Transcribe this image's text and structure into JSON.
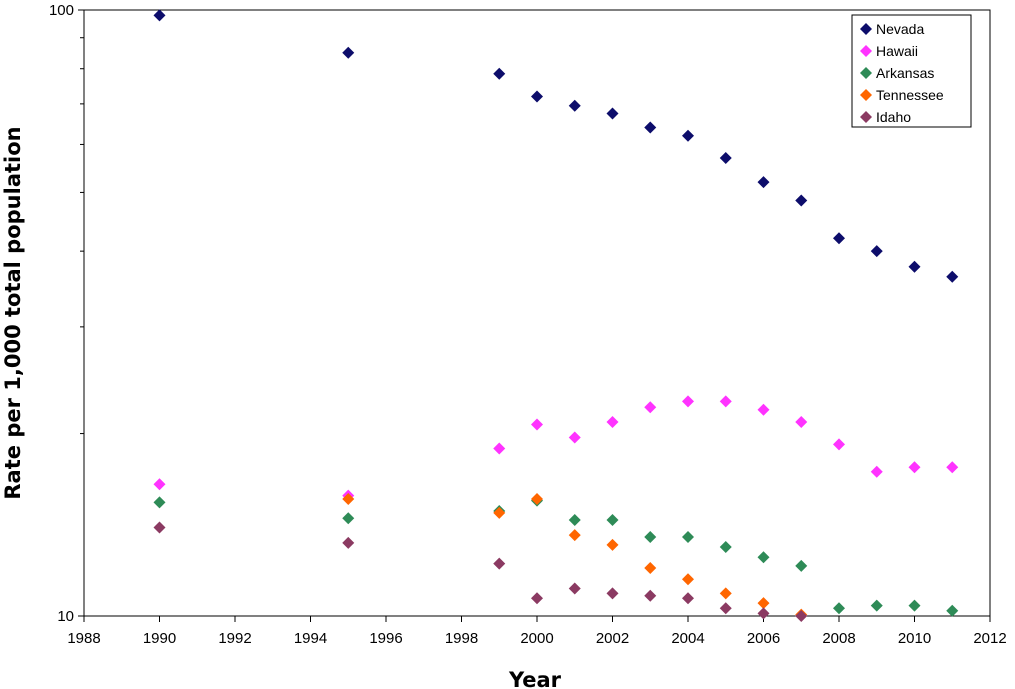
{
  "chart_data": {
    "type": "scatter",
    "title": "",
    "xlabel": "Year",
    "ylabel": "Rate per 1,000 total population",
    "xlim": [
      1988,
      2012
    ],
    "ylim": [
      10,
      100
    ],
    "yscale": "log",
    "x_ticks": [
      "1988",
      "1990",
      "1992",
      "1994",
      "1996",
      "1998",
      "2000",
      "2002",
      "2004",
      "2006",
      "2008",
      "2010",
      "2012"
    ],
    "y_ticks": [
      "10",
      "100"
    ],
    "grid": false,
    "legend_position": "top-right",
    "marker": "diamond",
    "series": [
      {
        "name": "Nevada",
        "color": "#0d0d6b",
        "points": [
          [
            1990,
            98.0
          ],
          [
            1995,
            85.0
          ],
          [
            1999,
            78.5
          ],
          [
            2000,
            72.0
          ],
          [
            2001,
            69.5
          ],
          [
            2002,
            67.5
          ],
          [
            2003,
            64.0
          ],
          [
            2004,
            62.0
          ],
          [
            2005,
            57.0
          ],
          [
            2006,
            52.0
          ],
          [
            2007,
            48.5
          ],
          [
            2008,
            42.0
          ],
          [
            2009,
            40.0
          ],
          [
            2010,
            37.7
          ],
          [
            2011,
            36.3
          ]
        ]
      },
      {
        "name": "Hawaii",
        "color": "#ff33ff",
        "points": [
          [
            1990,
            16.5
          ],
          [
            1995,
            15.8
          ],
          [
            1999,
            18.9
          ],
          [
            2000,
            20.7
          ],
          [
            2001,
            19.7
          ],
          [
            2002,
            20.9
          ],
          [
            2003,
            22.1
          ],
          [
            2004,
            22.6
          ],
          [
            2005,
            22.6
          ],
          [
            2006,
            21.9
          ],
          [
            2007,
            20.9
          ],
          [
            2008,
            19.2
          ],
          [
            2009,
            17.3
          ],
          [
            2010,
            17.6
          ],
          [
            2011,
            17.6
          ]
        ]
      },
      {
        "name": "Arkansas",
        "color": "#2e8b57",
        "points": [
          [
            1990,
            15.4
          ],
          [
            1995,
            14.5
          ],
          [
            1999,
            14.9
          ],
          [
            2000,
            15.5
          ],
          [
            2001,
            14.4
          ],
          [
            2002,
            14.4
          ],
          [
            2003,
            13.5
          ],
          [
            2004,
            13.5
          ],
          [
            2005,
            13.0
          ],
          [
            2006,
            12.5
          ],
          [
            2007,
            12.1
          ],
          [
            2008,
            10.3
          ],
          [
            2009,
            10.4
          ],
          [
            2010,
            10.4
          ],
          [
            2011,
            10.2
          ]
        ]
      },
      {
        "name": "Tennessee",
        "color": "#ff6600",
        "points": [
          [
            1995,
            15.6
          ],
          [
            1999,
            14.8
          ],
          [
            2000,
            15.6
          ],
          [
            2001,
            13.6
          ],
          [
            2002,
            13.1
          ],
          [
            2003,
            12.0
          ],
          [
            2004,
            11.5
          ],
          [
            2005,
            10.9
          ],
          [
            2006,
            10.5
          ],
          [
            2007,
            10.05
          ]
        ]
      },
      {
        "name": "Idaho",
        "color": "#8b3a62",
        "points": [
          [
            1990,
            14.0
          ],
          [
            1995,
            13.2
          ],
          [
            1999,
            12.2
          ],
          [
            2000,
            10.7
          ],
          [
            2001,
            11.1
          ],
          [
            2002,
            10.9
          ],
          [
            2003,
            10.8
          ],
          [
            2004,
            10.7
          ],
          [
            2005,
            10.3
          ],
          [
            2006,
            10.1
          ],
          [
            2007,
            10.0
          ]
        ]
      }
    ]
  }
}
